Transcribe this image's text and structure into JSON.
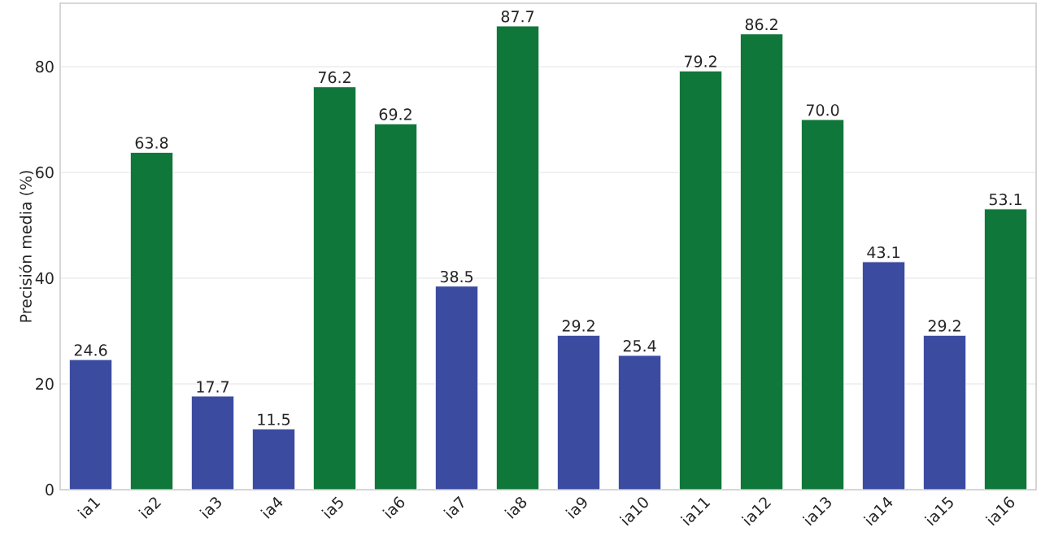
{
  "chart_data": {
    "type": "bar",
    "ylabel": "Precisión media (%)",
    "categories": [
      "ia1",
      "ia2",
      "ia3",
      "ia4",
      "ia5",
      "ia6",
      "ia7",
      "ia8",
      "ia9",
      "ia10",
      "ia11",
      "ia12",
      "ia13",
      "ia14",
      "ia15",
      "ia16"
    ],
    "values": [
      24.6,
      63.8,
      17.7,
      11.5,
      76.2,
      69.2,
      38.5,
      87.7,
      29.2,
      25.4,
      79.2,
      86.2,
      70.0,
      43.1,
      29.2,
      53.1
    ],
    "colors": [
      "#3b4ba0",
      "#10773a",
      "#3b4ba0",
      "#3b4ba0",
      "#10773a",
      "#10773a",
      "#3b4ba0",
      "#10773a",
      "#3b4ba0",
      "#3b4ba0",
      "#10773a",
      "#10773a",
      "#10773a",
      "#3b4ba0",
      "#3b4ba0",
      "#10773a"
    ],
    "value_labels": [
      "24.6",
      "63.8",
      "17.7",
      "11.5",
      "76.2",
      "69.2",
      "38.5",
      "87.7",
      "29.2",
      "25.4",
      "79.2",
      "86.2",
      "70.0",
      "43.1",
      "29.2",
      "53.1"
    ],
    "ylim": [
      0,
      92
    ],
    "yticks": [
      0,
      20,
      40,
      60,
      80
    ],
    "grid": "y"
  }
}
